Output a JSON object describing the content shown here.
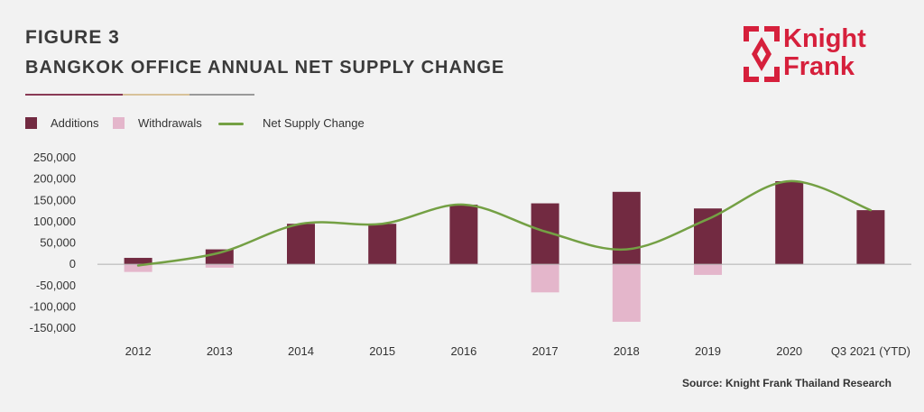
{
  "header": {
    "figure_label": "FIGURE 3",
    "title": "BANGKOK OFFICE ANNUAL NET SUPPLY CHANGE",
    "rule_colors": [
      "#8a3a55",
      "#d8c29a",
      "#9a9a9a"
    ]
  },
  "logo": {
    "line1": "Knight",
    "line2": "Frank",
    "color": "#d6203c",
    "icon": "knight-frank-diamond-logo"
  },
  "legend": {
    "items": [
      {
        "label": "Additions",
        "kind": "bar",
        "color": "#722a41"
      },
      {
        "label": "Withdrawals",
        "kind": "bar",
        "color": "#e4b6cb"
      },
      {
        "label": "Net  Supply Change",
        "kind": "line",
        "color": "#74a044"
      }
    ]
  },
  "chart_data": {
    "type": "bar",
    "title": "BANGKOK OFFICE ANNUAL NET SUPPLY CHANGE",
    "categories": [
      "2012",
      "2013",
      "2014",
      "2015",
      "2016",
      "2017",
      "2018",
      "2019",
      "2020",
      "Q3 2021 (YTD)"
    ],
    "series": [
      {
        "name": "Additions",
        "type": "bar",
        "color": "#722a41",
        "values": [
          15000,
          35000,
          95000,
          95000,
          140000,
          143000,
          170000,
          131000,
          195000,
          127000
        ]
      },
      {
        "name": "Withdrawals",
        "type": "bar",
        "color": "#e4b6cb",
        "values": [
          -18000,
          -8000,
          0,
          0,
          0,
          -66000,
          -135000,
          -25000,
          0,
          0
        ]
      },
      {
        "name": "Net  Supply Change",
        "type": "line",
        "color": "#74a044",
        "values": [
          -3000,
          27000,
          95000,
          95000,
          140000,
          77000,
          35000,
          106000,
          195000,
          127000
        ]
      }
    ],
    "ylim": [
      -150000,
      250000
    ],
    "yticks": [
      250000,
      200000,
      150000,
      100000,
      50000,
      0,
      -50000,
      -100000,
      -150000
    ],
    "ytick_labels": [
      "250,000",
      "200,000",
      "150,000",
      "100,000",
      "50,000",
      "0",
      "-50,000",
      "-100,000",
      "-150,000"
    ],
    "xlabel": "",
    "ylabel": "",
    "grid": false,
    "legend_position": "top-left"
  },
  "source": "Source: Knight Frank Thailand Research"
}
